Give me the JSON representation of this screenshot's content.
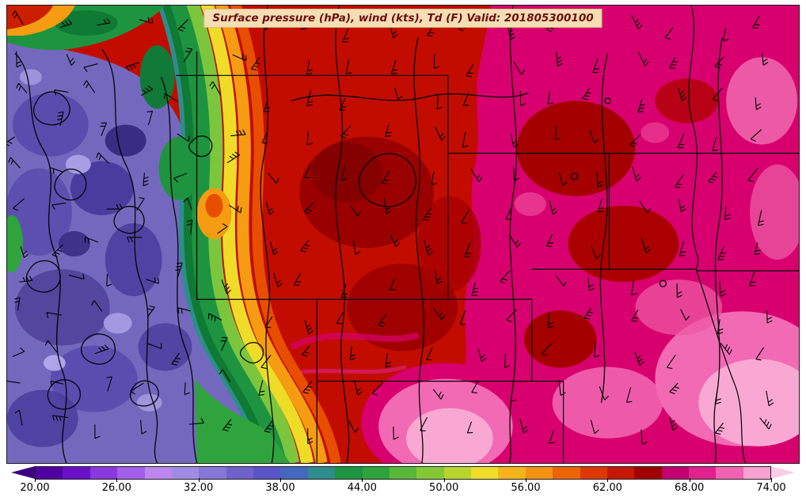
{
  "title": {
    "text": "Surface pressure (hPa), wind (kts), Td (F) Valid: 201805300100",
    "valid_time": "201805300100",
    "box_color": "#F5DEB3",
    "text_color": "#6B0F0F"
  },
  "colorbar": {
    "tick_labels": [
      "20.00",
      "26.00",
      "32.00",
      "38.00",
      "44.00",
      "50.00",
      "56.00",
      "62.00",
      "68.00",
      "74.00"
    ],
    "value_min": 20,
    "value_max": 74,
    "segment_colors": [
      "#4E00A0",
      "#6A10C8",
      "#8838DC",
      "#A35FE8",
      "#BC85F0",
      "#9F8BE4",
      "#8676D6",
      "#6F60CA",
      "#5A54C6",
      "#4468BE",
      "#2E8C8C",
      "#1E9440",
      "#2FA33C",
      "#57B83A",
      "#85C836",
      "#B8D52E",
      "#EFDC28",
      "#F5B41C",
      "#F59212",
      "#EC6406",
      "#DC3800",
      "#C41800",
      "#A00000",
      "#C2006E",
      "#E0218E",
      "#F262B0",
      "#F9A2D2"
    ],
    "left_arrow_color": "#3C0080",
    "right_arrow_color": "#FCCDE6"
  },
  "map": {
    "colors": {
      "dry_purple": "#7468BE",
      "green_band": "#1E9440",
      "yellow_band": "#EFDC28",
      "orange_band": "#F59C12",
      "warm_red": "#C30C00",
      "dark_red_core": "#9A0000",
      "moist_magenta": "#D8006E",
      "very_moist_pink": "#F26AB4",
      "contour_lines": "#000000",
      "state_borders": "#000000",
      "wind_barbs": "#000000"
    }
  }
}
